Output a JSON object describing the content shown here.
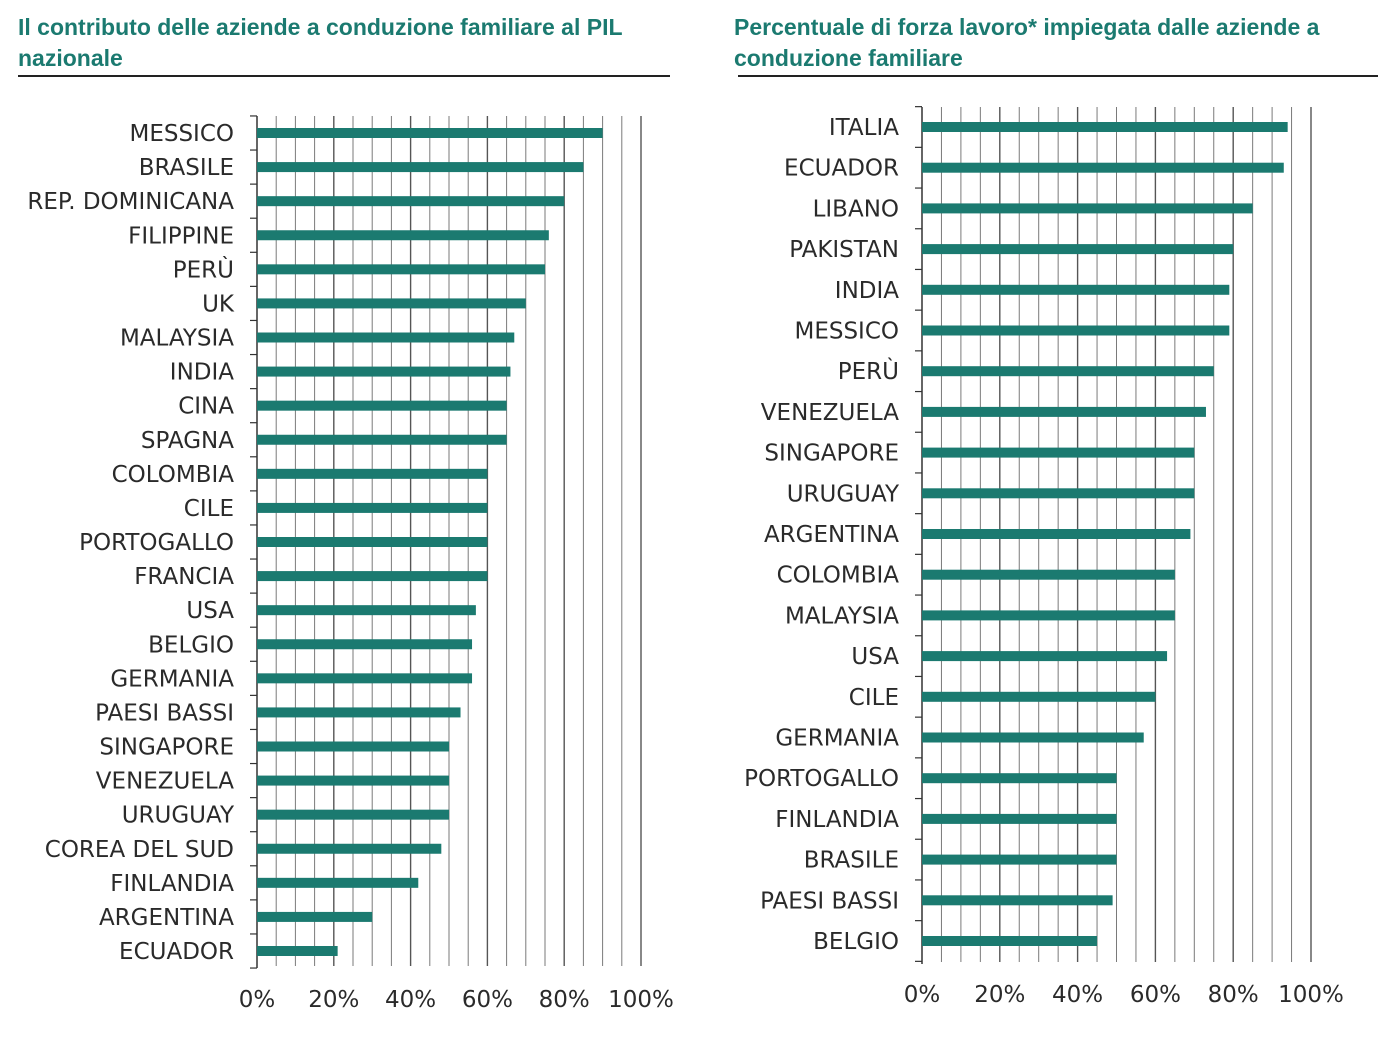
{
  "chart_data": [
    {
      "type": "bar",
      "orientation": "horizontal",
      "title": "Il contributo delle aziende a conduzione familiare al PIL nazionale",
      "categories": [
        "MESSICO",
        "BRASILE",
        "REP. DOMINICANA",
        "FILIPPINE",
        "PERÙ",
        "UK",
        "MALAYSIA",
        "INDIA",
        "CINA",
        "SPAGNA",
        "COLOMBIA",
        "CILE",
        "PORTOGALLO",
        "FRANCIA",
        "USA",
        "BELGIO",
        "GERMANIA",
        "PAESI BASSI",
        "SINGAPORE",
        "VENEZUELA",
        "URUGUAY",
        "COREA DEL SUD",
        "FINLANDIA",
        "ARGENTINA",
        "ECUADOR"
      ],
      "values": [
        90,
        85,
        80,
        76,
        75,
        70,
        67,
        66,
        65,
        65,
        60,
        60,
        60,
        60,
        57,
        56,
        56,
        53,
        50,
        50,
        50,
        48,
        42,
        30,
        21
      ],
      "xlim": [
        0,
        100
      ],
      "xticks": [
        "0%",
        "20%",
        "40%",
        "60%",
        "80%",
        "100%"
      ],
      "bar_color": "#1b7a70"
    },
    {
      "type": "bar",
      "orientation": "horizontal",
      "title": "Percentuale di forza lavoro* impiegata dalle aziende a conduzione familiare",
      "categories": [
        "ITALIA",
        "ECUADOR",
        "LIBANO",
        "PAKISTAN",
        "INDIA",
        "MESSICO",
        "PERÙ",
        "VENEZUELA",
        "SINGAPORE",
        "URUGUAY",
        "ARGENTINA",
        "COLOMBIA",
        "MALAYSIA",
        "USA",
        "CILE",
        "GERMANIA",
        "PORTOGALLO",
        "FINLANDIA",
        "BRASILE",
        "PAESI BASSI",
        "BELGIO"
      ],
      "values": [
        94,
        93,
        85,
        80,
        79,
        79,
        75,
        73,
        70,
        70,
        69,
        65,
        65,
        63,
        60,
        57,
        50,
        50,
        50,
        49,
        45
      ],
      "xlim": [
        0,
        100
      ],
      "xticks": [
        "0%",
        "20%",
        "40%",
        "60%",
        "80%",
        "100%"
      ],
      "bar_color": "#1b7a70"
    }
  ]
}
